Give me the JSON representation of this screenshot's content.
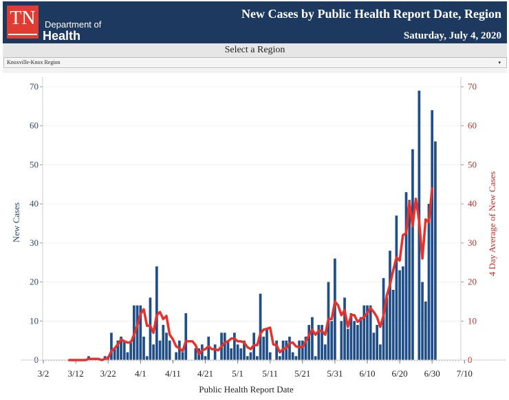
{
  "header": {
    "logo_abbr": "TN",
    "logo_line1": "Department of",
    "logo_line2": "Health",
    "title": "New Cases by Public Health Report Date, Region",
    "date": "Saturday, July 4, 2020"
  },
  "filter": {
    "label": "Select a Region",
    "selected": "Knoxville-Knox Region",
    "arrow_icon": "▾"
  },
  "colors": {
    "header_bg": "#1d3960",
    "bar": "#1f4e89",
    "line": "#e8312a",
    "left_axis_text": "#2b4a75",
    "right_axis_text": "#c9302c"
  },
  "chart_data": {
    "type": "bar",
    "title": "New Cases by Public Health Report Date, Region",
    "xlabel": "Public Health Report Date",
    "ylabel": "New Cases",
    "y2label": "4 Day Average of New Cases",
    "ylim": [
      0,
      70
    ],
    "y2lim": [
      0,
      70
    ],
    "yticks": [
      0,
      10,
      20,
      30,
      40,
      50,
      60,
      70
    ],
    "xticks": [
      "3/2",
      "3/12",
      "3/22",
      "4/1",
      "4/11",
      "4/21",
      "5/1",
      "5/11",
      "5/21",
      "5/31",
      "6/10",
      "6/20",
      "6/30",
      "7/10"
    ],
    "start_date": "3/10",
    "legend": "none",
    "grid": true,
    "series": [
      {
        "name": "New Cases",
        "type": "bar",
        "values": [
          0,
          0,
          0,
          0,
          0,
          0,
          1,
          0,
          0,
          0,
          0,
          1,
          1,
          7,
          3,
          5,
          6,
          5,
          2,
          5,
          14,
          14,
          14,
          6,
          1,
          16,
          4,
          24,
          5,
          9,
          7,
          5,
          0,
          2,
          5,
          2,
          12,
          0,
          0,
          3,
          3,
          4,
          1,
          6,
          0,
          4,
          0,
          7,
          7,
          5,
          3,
          7,
          4,
          3,
          5,
          1,
          2,
          7,
          1,
          17,
          6,
          8,
          2,
          0,
          5,
          1,
          5,
          5,
          6,
          2,
          1,
          5,
          5,
          6,
          9,
          11,
          1,
          9,
          9,
          4,
          20,
          10,
          26,
          0,
          10,
          16,
          8,
          12,
          10,
          9,
          11,
          14,
          14,
          14,
          7,
          9,
          4,
          21,
          16,
          28,
          18,
          37,
          23,
          24,
          43,
          41,
          54,
          0,
          69,
          20,
          15,
          40,
          64,
          56
        ]
      },
      {
        "name": "4 Day Average of New Cases",
        "type": "line",
        "values": [
          0,
          0,
          0,
          0,
          0,
          0,
          0.3,
          0.3,
          0.3,
          0.3,
          0,
          0.3,
          0.5,
          2.3,
          3,
          4,
          5.3,
          4.8,
          4.5,
          4.5,
          6.5,
          8.8,
          11.8,
          13,
          8.8,
          8.8,
          7,
          11.5,
          12.3,
          10.5,
          11.3,
          6.5,
          5.3,
          3.5,
          3,
          2.3,
          4.8,
          4.8,
          4.8,
          3.8,
          1.5,
          2.5,
          2.8,
          3.5,
          2.8,
          2.8,
          2.5,
          3.5,
          4.5,
          4.8,
          5.5,
          5.5,
          4.8,
          4.8,
          4.5,
          3.3,
          2.8,
          3.8,
          3.8,
          6.8,
          7.8,
          8,
          8.3,
          4,
          3.8,
          2,
          2.8,
          3,
          4.3,
          4.5,
          3.5,
          3.3,
          3.3,
          4.8,
          6.3,
          7.8,
          6.5,
          7.5,
          7.5,
          6.5,
          10.5,
          10.5,
          15,
          14,
          11.5,
          12.8,
          8.5,
          11.5,
          11.5,
          9.8,
          10.5,
          11,
          12,
          13.3,
          12.3,
          11,
          8.5,
          11.3,
          16.5,
          19.3,
          23,
          26.3,
          25.5,
          32,
          32.5,
          40.5,
          34.3,
          41.3,
          35.5,
          26,
          36,
          35.3,
          44
        ]
      }
    ]
  }
}
